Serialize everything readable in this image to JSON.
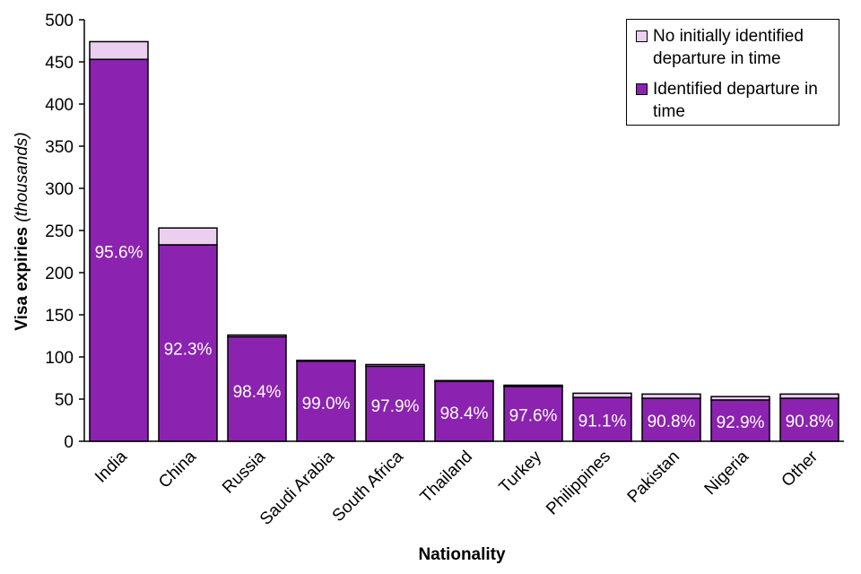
{
  "chart_data": {
    "type": "bar",
    "stacked": true,
    "title": "",
    "xlabel": "Nationality",
    "ylabel": "Visa expiries",
    "ylabel_unit": "(thousands)",
    "ylim": [
      0,
      500
    ],
    "yticks": [
      0,
      50,
      100,
      150,
      200,
      250,
      300,
      350,
      400,
      450,
      500
    ],
    "grid": false,
    "legend_position": "top-right",
    "categories": [
      "India",
      "China",
      "Russia",
      "Saudi Arabia",
      "South Africa",
      "Thailand",
      "Turkey",
      "Philippines",
      "Pakistan",
      "Nigeria",
      "Other"
    ],
    "series": [
      {
        "name": "Identified departure in time",
        "color": "#8B22B0",
        "values": [
          453,
          233,
          124,
          95,
          89,
          71,
          65,
          52,
          51,
          49,
          51
        ]
      },
      {
        "name": "No initially identified departure in time",
        "color": "#EACFEF",
        "values": [
          21,
          20,
          2,
          1,
          2,
          1,
          1.5,
          5,
          5,
          4,
          5
        ]
      }
    ],
    "data_labels": [
      "95.6%",
      "92.3%",
      "98.4%",
      "99.0%",
      "97.9%",
      "98.4%",
      "97.6%",
      "91.1%",
      "90.8%",
      "92.9%",
      "90.8%"
    ]
  }
}
